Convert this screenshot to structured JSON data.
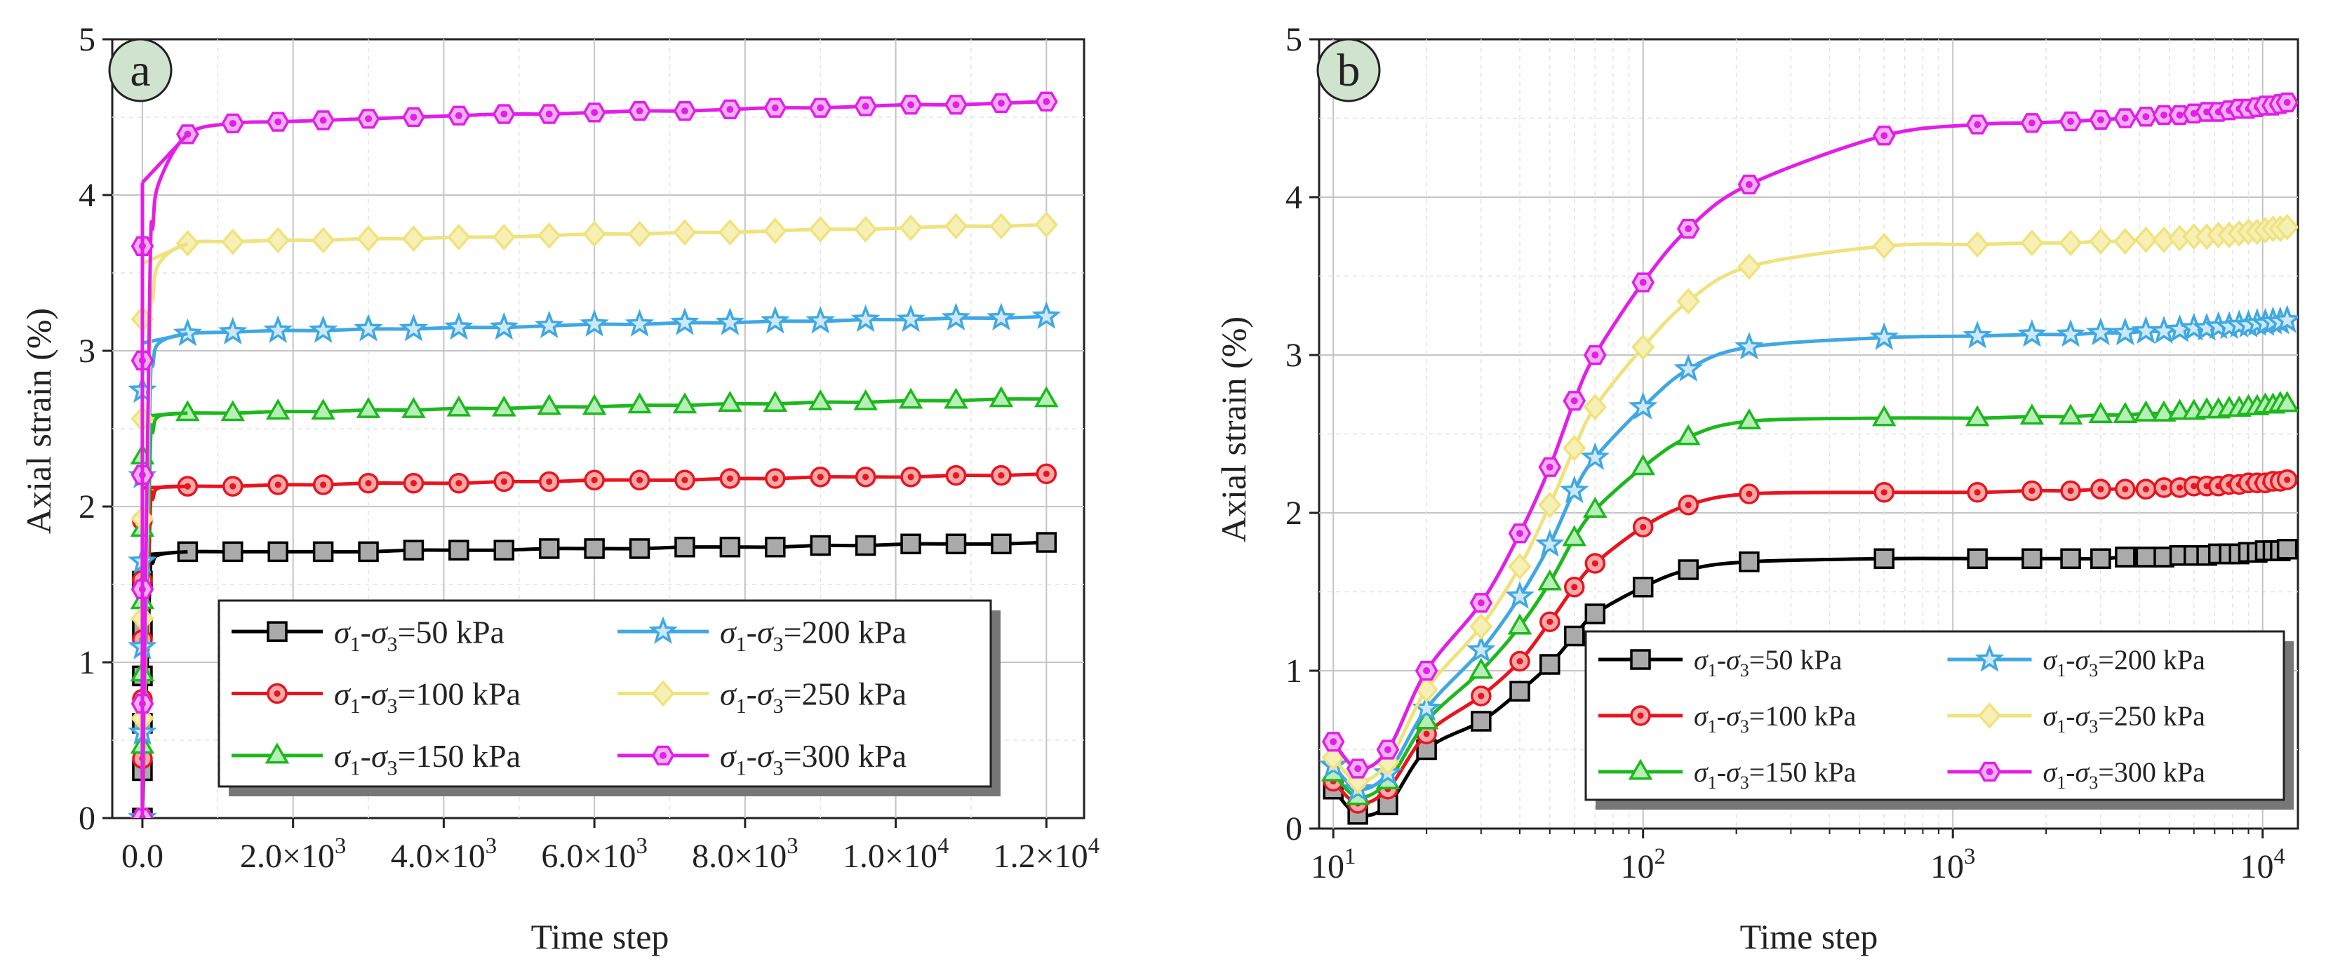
{
  "chart_data": [
    {
      "panel_label": "a",
      "type": "line",
      "title": "",
      "xlabel": "Time step",
      "ylabel": "Axial strain (%)",
      "x_scale": "linear",
      "xlim": [
        -400,
        12500
      ],
      "ylim": [
        0,
        5
      ],
      "grid": true,
      "x_ticks": [
        {
          "value": 0,
          "label": "0.0"
        },
        {
          "value": 2000,
          "label": "2.0×10",
          "exp": "3"
        },
        {
          "value": 4000,
          "label": "4.0×10",
          "exp": "3"
        },
        {
          "value": 6000,
          "label": "6.0×10",
          "exp": "3"
        },
        {
          "value": 8000,
          "label": "8.0×10",
          "exp": "3"
        },
        {
          "value": 10000,
          "label": "1.0×10",
          "exp": "4"
        },
        {
          "value": 12000,
          "label": "1.2×10",
          "exp": "4"
        }
      ],
      "y_ticks": [
        {
          "value": 0,
          "label": "0"
        },
        {
          "value": 1,
          "label": "1"
        },
        {
          "value": 2,
          "label": "2"
        },
        {
          "value": 3,
          "label": "3"
        },
        {
          "value": 4,
          "label": "4"
        },
        {
          "value": 5,
          "label": "5"
        }
      ],
      "legend_position": "bottom-right",
      "legend_columns": 2
    },
    {
      "panel_label": "b",
      "type": "line",
      "title": "",
      "xlabel": "Time step",
      "ylabel": "Axial strain (%)",
      "x_scale": "log",
      "xlim": [
        9,
        13000
      ],
      "ylim": [
        0,
        5
      ],
      "grid": true,
      "x_ticks": [
        {
          "value": 10,
          "label": "10",
          "exp": "1"
        },
        {
          "value": 100,
          "label": "10",
          "exp": "2"
        },
        {
          "value": 1000,
          "label": "10",
          "exp": "3"
        },
        {
          "value": 10000,
          "label": "10",
          "exp": "4"
        }
      ],
      "y_ticks": [
        {
          "value": 0,
          "label": "0"
        },
        {
          "value": 1,
          "label": "1"
        },
        {
          "value": 2,
          "label": "2"
        },
        {
          "value": 3,
          "label": "3"
        },
        {
          "value": 4,
          "label": "4"
        },
        {
          "value": 5,
          "label": "5"
        }
      ],
      "legend_position": "bottom-right",
      "legend_columns": 2
    }
  ],
  "series": [
    {
      "name": "σ1-σ3=50 kPa",
      "legend": {
        "sym": "σ",
        "s1": "1",
        "mid": "-σ",
        "s2": "3",
        "rest": "=50 kPa"
      },
      "color": "#000000",
      "marker": "square",
      "marker_fill": "#aaaaaa",
      "x": [
        0,
        10,
        12,
        15,
        20,
        30,
        40,
        50,
        60,
        70,
        100,
        140,
        220,
        600,
        1200,
        1800,
        2400,
        3000,
        3600,
        4200,
        4800,
        5400,
        6000,
        6600,
        7200,
        7800,
        8400,
        9000,
        9600,
        10200,
        10800,
        11400,
        12000
      ],
      "y": [
        0.0,
        0.25,
        0.09,
        0.15,
        0.5,
        0.68,
        0.87,
        1.04,
        1.22,
        1.36,
        1.53,
        1.64,
        1.69,
        1.71,
        1.71,
        1.71,
        1.71,
        1.71,
        1.72,
        1.72,
        1.72,
        1.73,
        1.73,
        1.73,
        1.74,
        1.74,
        1.74,
        1.75,
        1.75,
        1.76,
        1.76,
        1.76,
        1.77
      ]
    },
    {
      "name": "σ1-σ3=100 kPa",
      "legend": {
        "sym": "σ",
        "s1": "1",
        "mid": "-σ",
        "s2": "3",
        "rest": "=100 kPa"
      },
      "color": "#e8141e",
      "marker": "circle",
      "marker_fill": "#f7a8a8",
      "x": [
        0,
        10,
        12,
        15,
        20,
        30,
        40,
        50,
        60,
        70,
        100,
        140,
        220,
        600,
        1200,
        1800,
        2400,
        3000,
        3600,
        4200,
        4800,
        5400,
        6000,
        6600,
        7200,
        7800,
        8400,
        9000,
        9600,
        10200,
        10800,
        11400,
        12000
      ],
      "y": [
        0.0,
        0.3,
        0.16,
        0.25,
        0.6,
        0.84,
        1.06,
        1.31,
        1.53,
        1.68,
        1.91,
        2.05,
        2.12,
        2.13,
        2.13,
        2.14,
        2.14,
        2.15,
        2.15,
        2.15,
        2.16,
        2.16,
        2.17,
        2.17,
        2.17,
        2.18,
        2.18,
        2.19,
        2.19,
        2.19,
        2.2,
        2.2,
        2.21
      ]
    },
    {
      "name": "σ1-σ3=150 kPa",
      "legend": {
        "sym": "σ",
        "s1": "1",
        "mid": "-σ",
        "s2": "3",
        "rest": "=150 kPa"
      },
      "color": "#1db81d",
      "marker": "triangle",
      "marker_fill": "#b6f0b6",
      "x": [
        0,
        10,
        12,
        15,
        20,
        30,
        40,
        50,
        60,
        70,
        100,
        140,
        220,
        600,
        1200,
        1800,
        2400,
        3000,
        3600,
        4200,
        4800,
        5400,
        6000,
        6600,
        7200,
        7800,
        8400,
        9000,
        9600,
        10200,
        10800,
        11400,
        12000
      ],
      "y": [
        0.0,
        0.35,
        0.2,
        0.3,
        0.68,
        1.0,
        1.28,
        1.56,
        1.84,
        2.02,
        2.29,
        2.48,
        2.58,
        2.6,
        2.6,
        2.61,
        2.61,
        2.62,
        2.62,
        2.63,
        2.63,
        2.64,
        2.64,
        2.65,
        2.65,
        2.66,
        2.66,
        2.67,
        2.67,
        2.68,
        2.68,
        2.69,
        2.69
      ]
    },
    {
      "name": "σ1-σ3=200 kPa",
      "legend": {
        "sym": "σ",
        "s1": "1",
        "mid": "-σ",
        "s2": "3",
        "rest": "=200 kPa"
      },
      "color": "#3fa8e3",
      "marker": "star",
      "marker_fill": "#cde8f8",
      "x": [
        0,
        10,
        12,
        15,
        20,
        30,
        40,
        50,
        60,
        70,
        100,
        140,
        220,
        600,
        1200,
        1800,
        2400,
        3000,
        3600,
        4200,
        4800,
        5400,
        6000,
        6600,
        7200,
        7800,
        8400,
        9000,
        9600,
        10200,
        10800,
        11400,
        12000
      ],
      "y": [
        0.0,
        0.4,
        0.25,
        0.35,
        0.76,
        1.13,
        1.47,
        1.8,
        2.14,
        2.35,
        2.67,
        2.91,
        3.05,
        3.11,
        3.12,
        3.13,
        3.13,
        3.14,
        3.14,
        3.15,
        3.15,
        3.16,
        3.17,
        3.17,
        3.18,
        3.18,
        3.19,
        3.19,
        3.2,
        3.2,
        3.21,
        3.21,
        3.22
      ]
    },
    {
      "name": "σ1-σ3=250 kPa",
      "legend": {
        "sym": "σ",
        "s1": "1",
        "mid": "-σ",
        "s2": "3",
        "rest": "=250 kPa"
      },
      "color": "#f0e27c",
      "marker": "diamond",
      "marker_fill": "#f7f0b4",
      "x": [
        0,
        10,
        12,
        15,
        20,
        30,
        40,
        50,
        60,
        70,
        100,
        140,
        220,
        600,
        1200,
        1800,
        2400,
        3000,
        3600,
        4200,
        4800,
        5400,
        6000,
        6600,
        7200,
        7800,
        8400,
        9000,
        9600,
        10200,
        10800,
        11400,
        12000
      ],
      "y": [
        0.0,
        0.45,
        0.3,
        0.42,
        0.88,
        1.28,
        1.66,
        2.05,
        2.41,
        2.67,
        3.05,
        3.34,
        3.56,
        3.69,
        3.7,
        3.71,
        3.71,
        3.72,
        3.72,
        3.73,
        3.73,
        3.74,
        3.75,
        3.75,
        3.76,
        3.76,
        3.77,
        3.78,
        3.78,
        3.79,
        3.8,
        3.8,
        3.81
      ]
    },
    {
      "name": "σ1-σ3=300 kPa",
      "legend": {
        "sym": "σ",
        "s1": "1",
        "mid": "-σ",
        "s2": "3",
        "rest": "=300 kPa"
      },
      "color": "#e21ee8",
      "marker": "hexagon",
      "marker_fill": "#f5b0f5",
      "x": [
        0,
        10,
        12,
        15,
        20,
        30,
        40,
        50,
        60,
        70,
        100,
        140,
        220,
        600,
        1200,
        1800,
        2400,
        3000,
        3600,
        4200,
        4800,
        5400,
        6000,
        6600,
        7200,
        7800,
        8400,
        9000,
        9600,
        10200,
        10800,
        11400,
        12000
      ],
      "y": [
        0.0,
        0.55,
        0.38,
        0.5,
        1.0,
        1.43,
        1.87,
        2.29,
        2.71,
        3.0,
        3.46,
        3.8,
        4.08,
        4.39,
        4.46,
        4.47,
        4.48,
        4.49,
        4.5,
        4.51,
        4.52,
        4.52,
        4.53,
        4.54,
        4.54,
        4.55,
        4.56,
        4.56,
        4.57,
        4.58,
        4.58,
        4.59,
        4.6
      ]
    }
  ]
}
